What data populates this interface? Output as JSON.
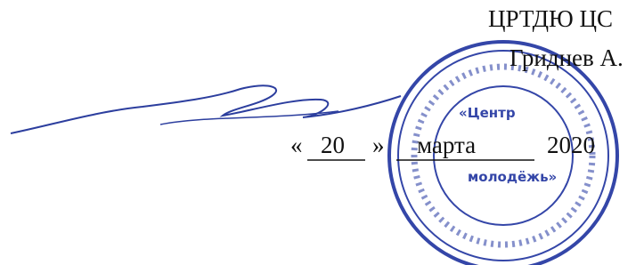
{
  "header": {
    "organization": "ЦРТДЮ ЦС",
    "director": "Гриднев А."
  },
  "date": {
    "open_quote": "«",
    "day": "20",
    "close_quote": "»",
    "month": "марта",
    "year": "2020"
  },
  "stamp": {
    "line1": "«Центр",
    "line2": "молодёжь»"
  }
}
